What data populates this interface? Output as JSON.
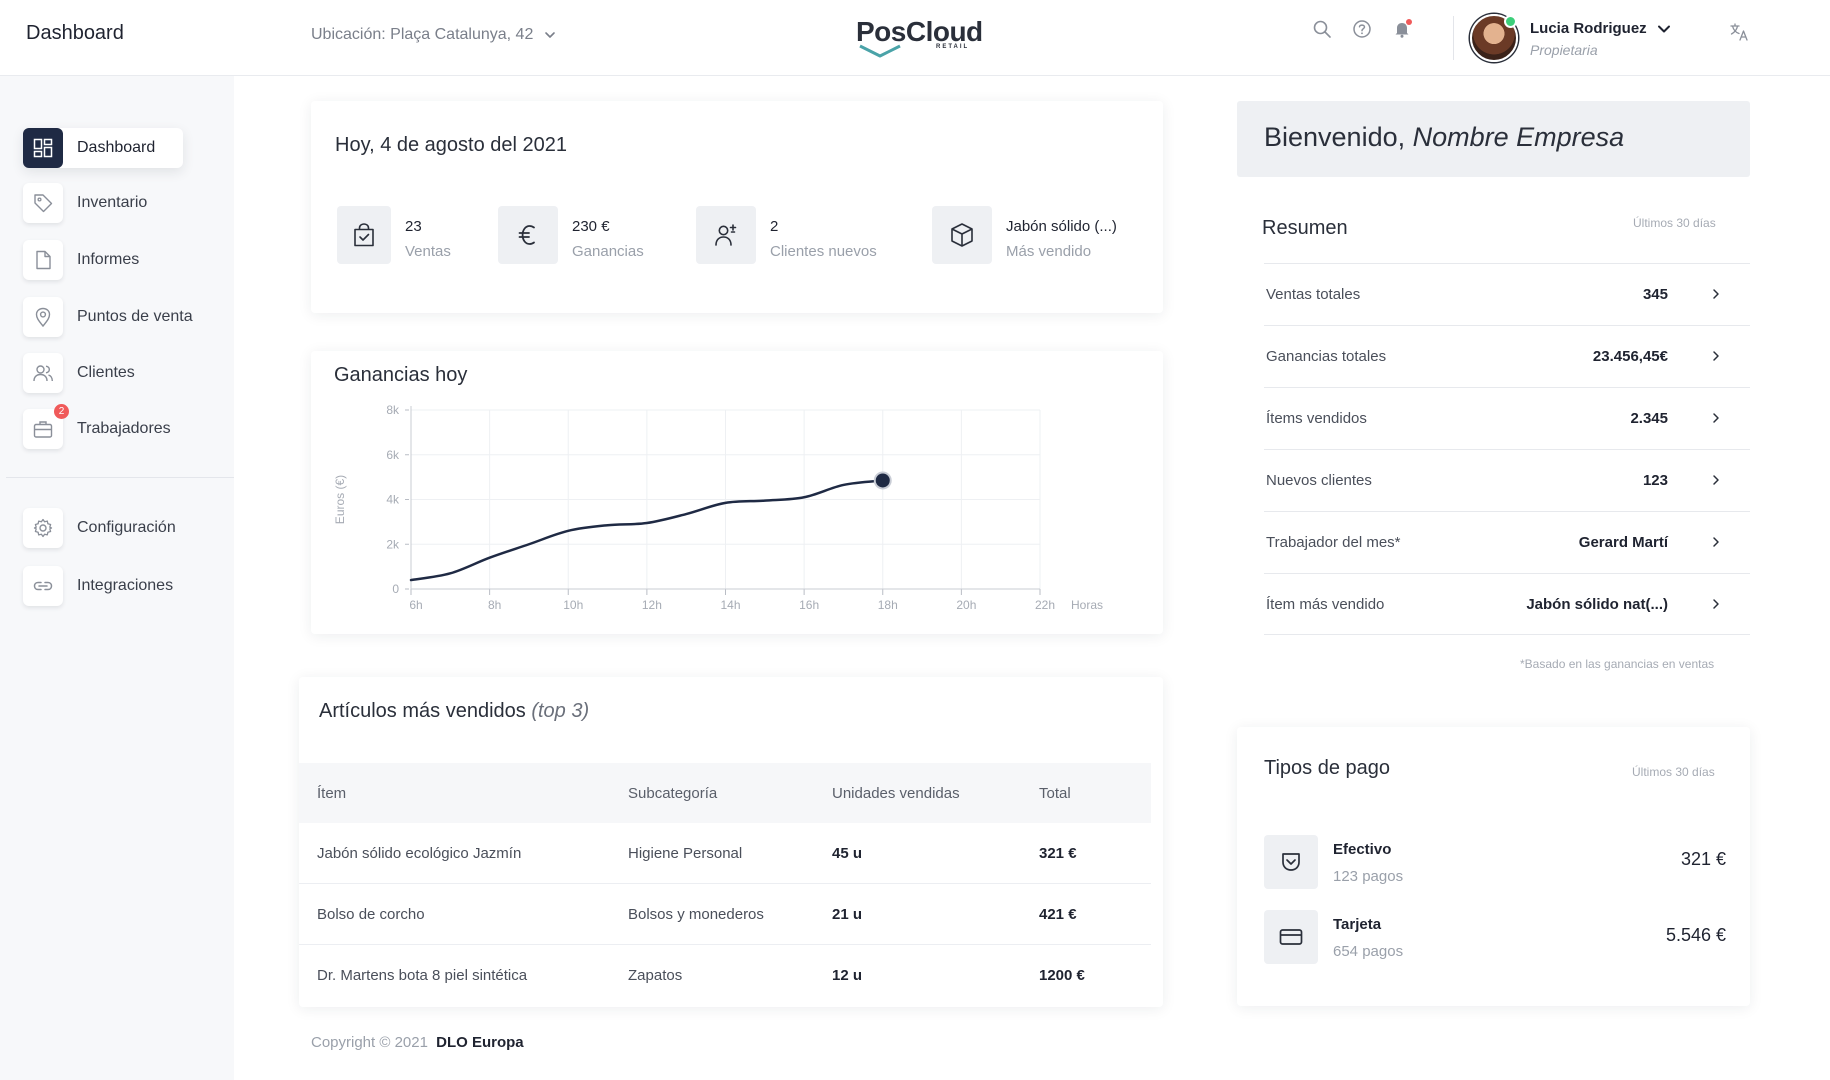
{
  "header": {
    "page_title": "Dashboard",
    "location": "Ubicación: Plaça Catalunya, 42",
    "logo_text": "PosCloud",
    "logo_sub": "RETAIL",
    "user_name": "Lucia Rodriguez",
    "user_role": "Propietaria",
    "icons": [
      "search-icon",
      "help-icon",
      "bell-icon",
      "translate-icon"
    ]
  },
  "sidebar": {
    "items": [
      {
        "label": "Dashboard",
        "icon": "dashboard-icon"
      },
      {
        "label": "Inventario",
        "icon": "tag-icon"
      },
      {
        "label": "Informes",
        "icon": "document-icon"
      },
      {
        "label": "Puntos de venta",
        "icon": "location-pin-icon"
      },
      {
        "label": "Clientes",
        "icon": "users-icon"
      },
      {
        "label": "Trabajadores",
        "icon": "briefcase-icon",
        "badge": "2"
      },
      {
        "label": "Configuración",
        "icon": "gear-icon"
      },
      {
        "label": "Integraciones",
        "icon": "link-icon"
      }
    ]
  },
  "today": {
    "title": "Hoy, 4 de agosto del 2021",
    "kpis": [
      {
        "value": "23",
        "label": "Ventas",
        "icon": "shopping-bag-icon"
      },
      {
        "value": "230 €",
        "label": "Ganancias",
        "icon": "euro-icon"
      },
      {
        "value": "2",
        "label": "Clientes nuevos",
        "icon": "user-add-icon"
      },
      {
        "value": "Jabón sólido (...)",
        "label": "Más vendido",
        "icon": "box-icon"
      }
    ]
  },
  "earnings_chart": {
    "title": "Ganancias hoy"
  },
  "chart_data": {
    "type": "line",
    "title": "Ganancias hoy",
    "xlabel": "Horas",
    "ylabel": "Euros (€)",
    "x_ticks": [
      "6h",
      "8h",
      "10h",
      "12h",
      "14h",
      "16h",
      "18h",
      "20h",
      "22h"
    ],
    "y_ticks": [
      "0",
      "2k",
      "4k",
      "6k",
      "8k"
    ],
    "xlim": [
      6,
      22
    ],
    "ylim": [
      0,
      8000
    ],
    "grid": true,
    "series": [
      {
        "x": [
          6,
          7,
          8,
          9,
          10,
          11,
          12,
          13,
          14,
          15,
          16,
          17,
          18
        ],
        "y": [
          400,
          700,
          1400,
          2000,
          2600,
          2850,
          2950,
          3350,
          3850,
          3950,
          4100,
          4650,
          4850
        ],
        "color": "#1f2a44"
      }
    ]
  },
  "top_items": {
    "title": "Artículos más vendidos",
    "title_suffix": "(top 3)",
    "columns": [
      "Ítem",
      "Subcategoría",
      "Unidades vendidas",
      "Total"
    ],
    "rows": [
      [
        "Jabón sólido ecológico Jazmín",
        "Higiene Personal",
        "45 u",
        "321 €"
      ],
      [
        "Bolso de corcho",
        "Bolsos y monederos",
        "21 u",
        "421 €"
      ],
      [
        "Dr. Martens bota 8 piel sintética",
        "Zapatos",
        "12 u",
        "1200 €"
      ]
    ]
  },
  "footer": {
    "copyright": "Copyright © 2021",
    "company": "DLO Europa"
  },
  "welcome": {
    "prefix": "Bienvenido,",
    "company": "Nombre Empresa"
  },
  "summary": {
    "title": "Resumen",
    "period": "Últimos 30 días",
    "rows": [
      {
        "label": "Ventas totales",
        "value": "345"
      },
      {
        "label": "Ganancias totales",
        "value": "23.456,45€"
      },
      {
        "label": "Ítems vendidos",
        "value": "2.345"
      },
      {
        "label": "Nuevos clientes",
        "value": "123"
      },
      {
        "label": "Trabajador del mes*",
        "value": "Gerard Martí"
      },
      {
        "label": "Ítem más vendido",
        "value": "Jabón sólido nat(...)"
      }
    ],
    "note": "*Basado en las ganancias en ventas"
  },
  "payments": {
    "title": "Tipos de pago",
    "period": "Últimos 30 días",
    "items": [
      {
        "name": "Efectivo",
        "count": "123 pagos",
        "amount": "321 €",
        "icon": "wallet-icon"
      },
      {
        "name": "Tarjeta",
        "count": "654 pagos",
        "amount": "5.546 €",
        "icon": "credit-card-icon"
      }
    ]
  },
  "colors": {
    "accent": "#1f2a44",
    "badge": "#f05a5a",
    "online": "#3ccf7a"
  }
}
